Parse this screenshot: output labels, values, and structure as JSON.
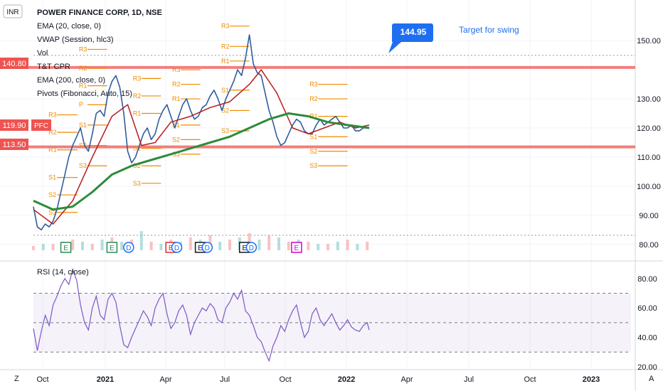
{
  "header": {
    "currency": "INR",
    "legend": [
      "POWER FINANCE CORP, 1D, NSE",
      "EMA (20, close, 0)",
      "VWAP (Session, hlc3)",
      "Vol",
      "T&T CPR",
      "EMA (200, close, 0)",
      "Pivots (Fibonacci, Auto, 15)"
    ]
  },
  "price_tags": {
    "resistance": "140.80",
    "current": "119.90",
    "current_symbol": "PFC",
    "support": "113.50"
  },
  "annotation": {
    "callout": "144.95",
    "note": "Target for swing"
  },
  "rsi": {
    "title": "RSI (14, close)"
  },
  "footer": {
    "left_btn": "Z",
    "right_btn": "A"
  },
  "colors": {
    "price": "#2f5e9e",
    "ema20": "#b71c1c",
    "ema200": "#2e8b3a",
    "pivots": "#ef8a00",
    "levels": "#ef5350",
    "rsi": "#7e57c2",
    "callout": "#1e6ff0"
  },
  "chart_data": [
    {
      "type": "line",
      "title": "POWER FINANCE CORP, 1D, NSE",
      "x_ticks": [
        "Oct",
        "2021",
        "Apr",
        "Jul",
        "Oct",
        "2022",
        "Apr",
        "Jul",
        "Oct",
        "2023"
      ],
      "ylim": [
        78,
        162
      ],
      "y_ticks": [
        80,
        90,
        100,
        110,
        120,
        130,
        150
      ],
      "y_tick_labels": [
        "80.00",
        "90.00",
        "100.00",
        "110.00",
        "120.00",
        "130.00",
        "150.00"
      ],
      "grid": true,
      "series": [
        {
          "name": "POWER FINANCE CORP",
          "x": [
            0,
            4,
            8,
            12,
            16,
            20,
            24,
            28,
            32,
            36,
            40,
            44,
            48,
            52,
            56,
            60,
            64,
            68,
            72,
            76,
            80,
            84,
            88,
            92,
            96,
            100,
            104,
            108,
            112,
            116,
            120,
            124,
            128,
            132,
            136,
            140,
            144,
            148,
            152,
            156,
            160,
            164,
            168,
            172,
            176,
            180,
            184,
            188,
            192,
            196,
            200,
            204,
            208,
            212,
            216,
            220,
            224,
            228,
            232,
            236,
            240,
            244,
            248,
            252,
            256,
            260,
            264,
            268,
            272,
            276,
            280,
            284,
            288,
            292,
            296,
            300,
            304,
            308,
            312,
            316,
            320,
            324,
            328,
            332,
            336,
            340,
            342
          ],
          "values": [
            93,
            86,
            85,
            87,
            86,
            88,
            92,
            98,
            104,
            110,
            114,
            117,
            120,
            114,
            112,
            118,
            125,
            126,
            124,
            132,
            136,
            138,
            134,
            125,
            112,
            108,
            110,
            114,
            118,
            120,
            116,
            118,
            123,
            126,
            128,
            124,
            120,
            124,
            128,
            130,
            126,
            123,
            124,
            127,
            128,
            131,
            133,
            130,
            126,
            130,
            133,
            136,
            140,
            138,
            144,
            152,
            142,
            139,
            138,
            132,
            126,
            122,
            117,
            114,
            115,
            118,
            121,
            123,
            122,
            119,
            118,
            118,
            121,
            123,
            121,
            122,
            123,
            124,
            122,
            120,
            120,
            121,
            119,
            119,
            120,
            120,
            119.9
          ]
        },
        {
          "name": "EMA (20, close, 0)",
          "x": [
            0,
            20,
            40,
            60,
            80,
            96,
            110,
            124,
            140,
            160,
            180,
            200,
            220,
            232,
            248,
            264,
            280,
            296,
            312,
            328,
            342
          ],
          "values": [
            92,
            87,
            95,
            110,
            124,
            128,
            114,
            115,
            122,
            124,
            127,
            129,
            135,
            140,
            132,
            120,
            118,
            120,
            122,
            120,
            121
          ]
        },
        {
          "name": "EMA (200, close, 0)",
          "x": [
            0,
            20,
            40,
            60,
            80,
            100,
            120,
            140,
            160,
            180,
            200,
            220,
            240,
            260,
            280,
            300,
            320,
            342
          ],
          "values": [
            95,
            92,
            93,
            98,
            104,
            107,
            109,
            111,
            113,
            115,
            117,
            120,
            123,
            125,
            124,
            122,
            121,
            120
          ]
        }
      ],
      "levels": [
        {
          "name": "resistance",
          "value": 140.8
        },
        {
          "name": "support",
          "value": 113.5
        },
        {
          "name": "target",
          "value": 144.95
        }
      ],
      "pivot_levels": [
        {
          "label": "R3",
          "value": 147,
          "x": [
            55,
            75
          ]
        },
        {
          "label": "R2",
          "value": 140.5,
          "x": [
            55,
            75
          ]
        },
        {
          "label": "R1",
          "value": 134.5,
          "x": [
            55,
            75
          ]
        },
        {
          "label": "P",
          "value": 128,
          "x": [
            55,
            75
          ]
        },
        {
          "label": "S1",
          "value": 121,
          "x": [
            55,
            75
          ]
        },
        {
          "label": "S2",
          "value": 114,
          "x": [
            55,
            75
          ]
        },
        {
          "label": "S3",
          "value": 107,
          "x": [
            55,
            75
          ]
        },
        {
          "label": "R3",
          "value": 124.5,
          "x": [
            24,
            45
          ]
        },
        {
          "label": "R2",
          "value": 118.5,
          "x": [
            24,
            45
          ]
        },
        {
          "label": "R1",
          "value": 112.5,
          "x": [
            24,
            45
          ]
        },
        {
          "label": "S1",
          "value": 103,
          "x": [
            24,
            45
          ]
        },
        {
          "label": "S2",
          "value": 97,
          "x": [
            24,
            45
          ]
        },
        {
          "label": "S3",
          "value": 91,
          "x": [
            24,
            45
          ]
        },
        {
          "label": "R3",
          "value": 137,
          "x": [
            110,
            130
          ]
        },
        {
          "label": "R2",
          "value": 131,
          "x": [
            110,
            130
          ]
        },
        {
          "label": "R1",
          "value": 125,
          "x": [
            110,
            130
          ]
        },
        {
          "label": "S1",
          "value": 113,
          "x": [
            110,
            130
          ]
        },
        {
          "label": "S2",
          "value": 107,
          "x": [
            110,
            130
          ]
        },
        {
          "label": "S3",
          "value": 101,
          "x": [
            110,
            130
          ]
        },
        {
          "label": "R3",
          "value": 140,
          "x": [
            150,
            170
          ]
        },
        {
          "label": "R2",
          "value": 135,
          "x": [
            150,
            170
          ]
        },
        {
          "label": "R1",
          "value": 130,
          "x": [
            150,
            170
          ]
        },
        {
          "label": "S1",
          "value": 121,
          "x": [
            150,
            170
          ]
        },
        {
          "label": "S2",
          "value": 116,
          "x": [
            150,
            170
          ]
        },
        {
          "label": "S3",
          "value": 111,
          "x": [
            150,
            170
          ]
        },
        {
          "label": "R3",
          "value": 155,
          "x": [
            200,
            220
          ]
        },
        {
          "label": "R2",
          "value": 148,
          "x": [
            200,
            220
          ]
        },
        {
          "label": "R1",
          "value": 143,
          "x": [
            200,
            220
          ]
        },
        {
          "label": "S1",
          "value": 133,
          "x": [
            200,
            220
          ]
        },
        {
          "label": "S2",
          "value": 126,
          "x": [
            200,
            220
          ]
        },
        {
          "label": "S3",
          "value": 119,
          "x": [
            200,
            220
          ]
        },
        {
          "label": "R3",
          "value": 135,
          "x": [
            290,
            320
          ]
        },
        {
          "label": "R2",
          "value": 130,
          "x": [
            290,
            320
          ]
        },
        {
          "label": "R1",
          "value": 124,
          "x": [
            290,
            320
          ]
        },
        {
          "label": "S1",
          "value": 117,
          "x": [
            290,
            320
          ]
        },
        {
          "label": "S2",
          "value": 112,
          "x": [
            290,
            320
          ]
        },
        {
          "label": "S3",
          "value": 107,
          "x": [
            290,
            320
          ]
        }
      ],
      "volume": {
        "name": "Vol",
        "x": [
          0,
          10,
          20,
          30,
          40,
          50,
          60,
          70,
          80,
          90,
          100,
          110,
          120,
          130,
          140,
          150,
          160,
          170,
          180,
          190,
          200,
          210,
          220,
          230,
          240,
          250,
          260,
          270,
          280,
          290,
          300,
          310,
          320,
          330,
          340
        ],
        "values": [
          0.2,
          0.3,
          0.3,
          0.4,
          0.5,
          0.4,
          0.3,
          0.5,
          0.6,
          0.4,
          0.5,
          0.9,
          0.4,
          0.3,
          0.5,
          0.4,
          0.6,
          0.5,
          0.7,
          0.4,
          0.5,
          0.6,
          0.8,
          0.5,
          0.7,
          0.6,
          0.4,
          0.5,
          0.4,
          0.3,
          0.3,
          0.4,
          0.5,
          0.3,
          0.4
        ]
      },
      "event_markers": [
        {
          "x": 33,
          "label": "E",
          "color": "#2e8b57"
        },
        {
          "x": 80,
          "label": "E",
          "color": "#2e8b57"
        },
        {
          "x": 97,
          "label": "D",
          "color": "#1e6ff0"
        },
        {
          "x": 140,
          "label": "E",
          "color": "#d32f2f"
        },
        {
          "x": 146,
          "label": "D",
          "color": "#1e6ff0"
        },
        {
          "x": 170,
          "label": "E",
          "color": "#131722"
        },
        {
          "x": 177,
          "label": "D",
          "color": "#1e6ff0"
        },
        {
          "x": 215,
          "label": "E",
          "color": "#131722"
        },
        {
          "x": 222,
          "label": "D",
          "color": "#1e6ff0"
        },
        {
          "x": 268,
          "label": "E",
          "color": "#d400d4"
        }
      ]
    },
    {
      "type": "line",
      "title": "RSI (14, close)",
      "ylim": [
        18,
        92
      ],
      "y_ticks": [
        20,
        40,
        60,
        80
      ],
      "y_tick_labels": [
        "20.00",
        "40.00",
        "60.00",
        "80.00"
      ],
      "bands": [
        30,
        50,
        70
      ],
      "series": [
        {
          "name": "RSI (14, close)",
          "x": [
            0,
            4,
            8,
            12,
            16,
            20,
            24,
            28,
            32,
            36,
            40,
            44,
            48,
            52,
            56,
            60,
            64,
            68,
            72,
            76,
            80,
            84,
            88,
            92,
            96,
            100,
            104,
            108,
            112,
            116,
            120,
            124,
            128,
            132,
            136,
            140,
            144,
            148,
            152,
            156,
            160,
            164,
            168,
            172,
            176,
            180,
            184,
            188,
            192,
            196,
            200,
            204,
            208,
            212,
            216,
            220,
            224,
            228,
            232,
            236,
            240,
            244,
            248,
            252,
            256,
            260,
            264,
            268,
            272,
            276,
            280,
            284,
            288,
            292,
            296,
            300,
            304,
            308,
            312,
            316,
            320,
            324,
            328,
            332,
            336,
            340,
            342
          ],
          "values": [
            46,
            31,
            44,
            55,
            48,
            62,
            68,
            75,
            80,
            76,
            86,
            79,
            62,
            50,
            45,
            60,
            68,
            55,
            52,
            66,
            70,
            64,
            48,
            35,
            33,
            40,
            46,
            52,
            58,
            54,
            48,
            60,
            66,
            70,
            56,
            46,
            50,
            58,
            62,
            55,
            42,
            50,
            55,
            60,
            58,
            63,
            60,
            52,
            50,
            60,
            64,
            70,
            66,
            72,
            58,
            55,
            48,
            40,
            37,
            30,
            24,
            34,
            40,
            48,
            44,
            52,
            58,
            62,
            50,
            40,
            44,
            56,
            60,
            52,
            48,
            52,
            56,
            50,
            45,
            48,
            52,
            47,
            45,
            44,
            48,
            50,
            45
          ]
        }
      ]
    }
  ]
}
